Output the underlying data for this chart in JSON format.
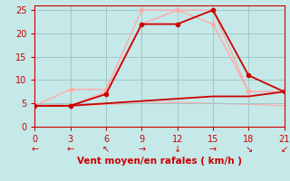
{
  "background_color": "#c5e8e8",
  "grid_color": "#a0c8c8",
  "xlabel": "Vent moyen/en rafales ( km/h )",
  "xlim": [
    0,
    21
  ],
  "ylim": [
    0,
    26
  ],
  "xticks": [
    0,
    3,
    6,
    9,
    12,
    15,
    18,
    21
  ],
  "yticks": [
    0,
    5,
    10,
    15,
    20,
    25
  ],
  "series": [
    {
      "x": [
        0,
        3,
        6,
        9,
        12,
        15,
        18,
        21
      ],
      "y": [
        4.5,
        8,
        8,
        25,
        25,
        22,
        7.5,
        7.5
      ],
      "color": "#ffaaaa",
      "linewidth": 1.0,
      "marker": "o",
      "markersize": 2.5,
      "zorder": 2,
      "linestyle": "-"
    },
    {
      "x": [
        0,
        3,
        6,
        9,
        12,
        15,
        18,
        21
      ],
      "y": [
        4.5,
        4.5,
        7.5,
        22,
        25,
        25,
        7.5,
        7.5
      ],
      "color": "#ffaaaa",
      "linewidth": 1.0,
      "marker": "o",
      "markersize": 2.5,
      "zorder": 2,
      "linestyle": "-"
    },
    {
      "x": [
        0,
        3,
        6,
        9,
        12,
        15,
        18,
        21
      ],
      "y": [
        4.5,
        4.5,
        7,
        22,
        22,
        25,
        11,
        7.5
      ],
      "color": "#cc0000",
      "linewidth": 1.3,
      "marker": "o",
      "markersize": 3.0,
      "zorder": 4,
      "linestyle": "-"
    },
    {
      "x": [
        0,
        3,
        6,
        9,
        12,
        15,
        18,
        21
      ],
      "y": [
        4.5,
        4.5,
        5.0,
        5.5,
        6.0,
        6.5,
        6.5,
        7.5
      ],
      "color": "#cc0000",
      "linewidth": 1.3,
      "marker": null,
      "markersize": 0,
      "zorder": 3,
      "linestyle": "-"
    },
    {
      "x": [
        0,
        3,
        6,
        9,
        12,
        15,
        18,
        21
      ],
      "y": [
        4.5,
        4.5,
        4.8,
        5.0,
        5.2,
        5.0,
        4.8,
        4.5
      ],
      "color": "#ffaaaa",
      "linewidth": 0.9,
      "marker": null,
      "markersize": 0,
      "zorder": 1,
      "linestyle": "-"
    }
  ],
  "arrow_labels": [
    {
      "x": 0,
      "text": "←"
    },
    {
      "x": 3,
      "text": "←"
    },
    {
      "x": 6,
      "text": "↖"
    },
    {
      "x": 9,
      "text": "→"
    },
    {
      "x": 12,
      "text": "↓"
    },
    {
      "x": 15,
      "text": "→"
    },
    {
      "x": 18,
      "text": "↘"
    },
    {
      "x": 21,
      "text": "↙"
    }
  ],
  "label_color": "#cc0000",
  "xlabel_fontsize": 7.5,
  "tick_fontsize": 7,
  "tick_color": "#cc0000",
  "arrow_fontsize": 7
}
